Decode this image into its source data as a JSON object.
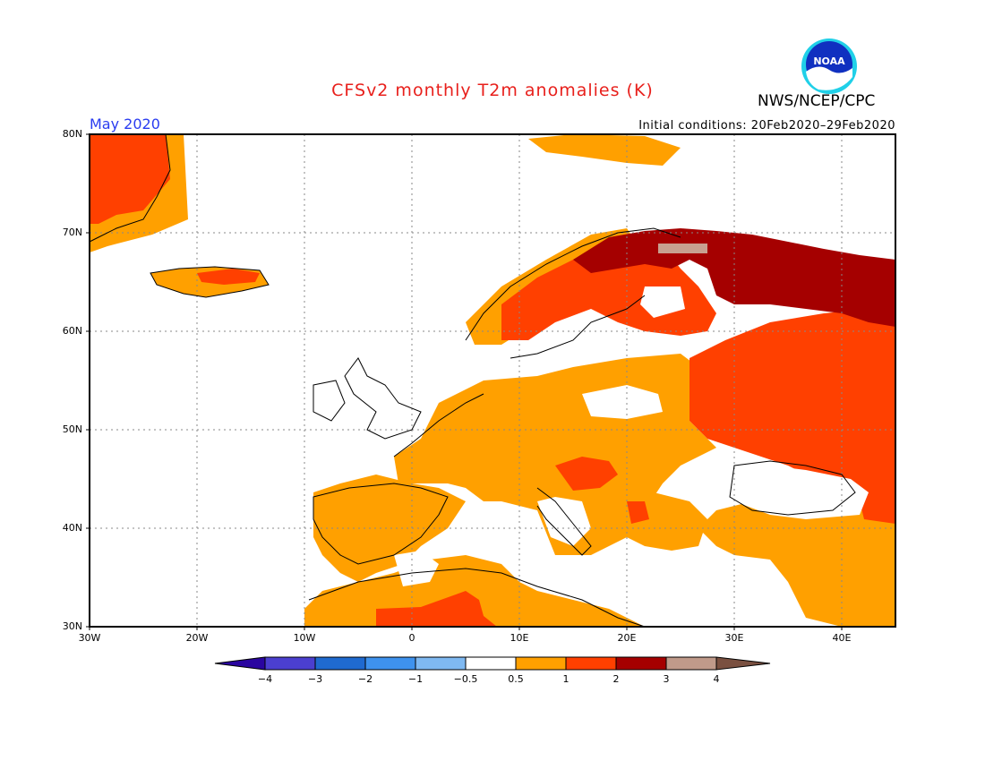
{
  "title": "CFSv2 monthly T2m anomalies (K)",
  "agency": "NWS/NCEP/CPC",
  "logo_text": "NOAA",
  "valid_month": "May 2020",
  "initial_conditions": "Initial conditions: 20Feb2020–29Feb2020",
  "lat_ticks": [
    "80N",
    "70N",
    "60N",
    "50N",
    "40N",
    "30N"
  ],
  "lon_ticks": [
    "30W",
    "20W",
    "10W",
    "0",
    "10E",
    "20E",
    "30E",
    "40E"
  ],
  "colorbar": {
    "labels": [
      "−4",
      "−3",
      "−2",
      "−1",
      "−0.5",
      "0.5",
      "1",
      "2",
      "3",
      "4"
    ],
    "colors": [
      "#2a05a0",
      "#4b3fd0",
      "#1f6ad0",
      "#3e92ee",
      "#7fb9f2",
      "#ffffff",
      "#ffa000",
      "#ff4000",
      "#a50000",
      "#c09a8a",
      "#7a5040"
    ]
  },
  "anomaly_colors": {
    "weak_warm": "#ffa000",
    "warm": "#ff4000",
    "strong_warm": "#a50000",
    "very_strong_warm": "#c8a090"
  }
}
